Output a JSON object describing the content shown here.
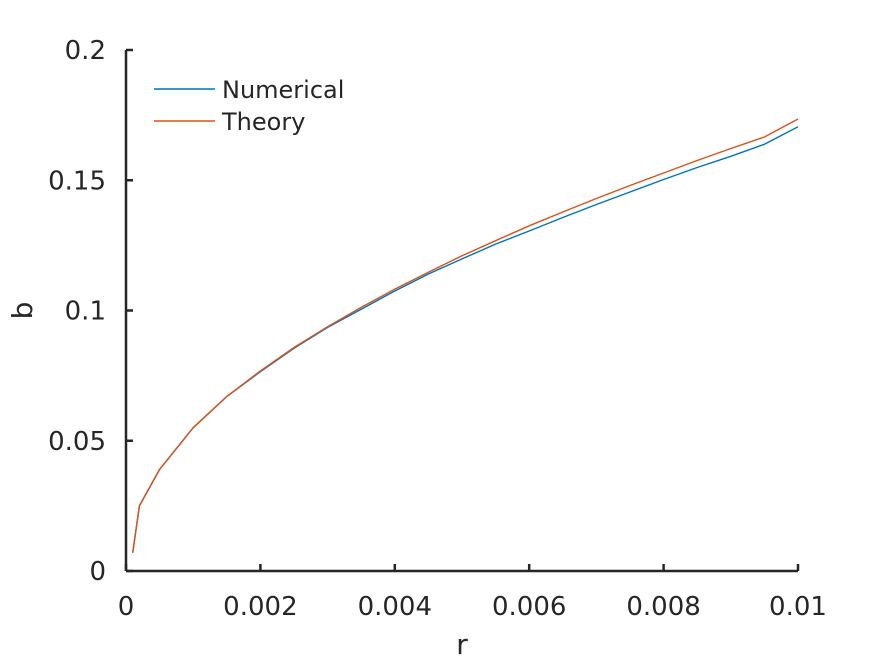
{
  "chart_data": {
    "type": "line",
    "title": "",
    "xlabel": "r",
    "ylabel": "b",
    "xlim": [
      0,
      0.01
    ],
    "ylim": [
      0,
      0.2
    ],
    "xticks": [
      0,
      0.002,
      0.004,
      0.006,
      0.008,
      0.01
    ],
    "yticks": [
      0,
      0.05,
      0.1,
      0.15,
      0.2
    ],
    "xtick_labels": [
      "0",
      "0.002",
      "0.004",
      "0.006",
      "0.008",
      "0.01"
    ],
    "ytick_labels": [
      "0",
      "0.05",
      "0.1",
      "0.15",
      "0.2"
    ],
    "grid": false,
    "legend_position": "top-left",
    "series": [
      {
        "name": "Numerical",
        "color": "#0072BD",
        "x": [
          0.0001,
          0.0002,
          0.0005,
          0.001,
          0.0015,
          0.002,
          0.0025,
          0.003,
          0.0035,
          0.004,
          0.0045,
          0.005,
          0.0055,
          0.006,
          0.0065,
          0.007,
          0.0075,
          0.008,
          0.0085,
          0.009,
          0.0095,
          0.01
        ],
        "y": [
          0.007,
          0.025,
          0.039,
          0.055,
          0.067,
          0.0765,
          0.0855,
          0.0935,
          0.1005,
          0.1075,
          0.114,
          0.1198,
          0.1255,
          0.1305,
          0.1357,
          0.1407,
          0.1455,
          0.1503,
          0.1549,
          0.1592,
          0.1638,
          0.1705
        ]
      },
      {
        "name": "Theory",
        "color": "#D95319",
        "x": [
          0.0001,
          0.0002,
          0.0005,
          0.001,
          0.0015,
          0.002,
          0.0025,
          0.003,
          0.0035,
          0.004,
          0.0045,
          0.005,
          0.0055,
          0.006,
          0.0065,
          0.007,
          0.0075,
          0.008,
          0.0085,
          0.009,
          0.0095,
          0.01
        ],
        "y": [
          0.007,
          0.025,
          0.039,
          0.055,
          0.067,
          0.0768,
          0.0858,
          0.0938,
          0.1012,
          0.1082,
          0.1147,
          0.121,
          0.1268,
          0.1325,
          0.1378,
          0.143,
          0.148,
          0.1528,
          0.1576,
          0.1622,
          0.1666,
          0.1735
        ]
      }
    ]
  }
}
